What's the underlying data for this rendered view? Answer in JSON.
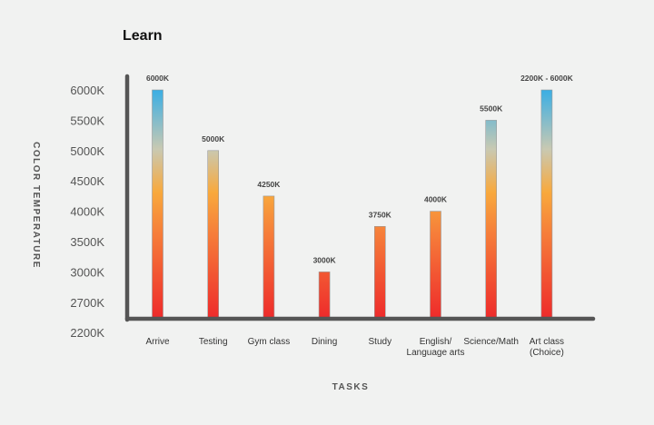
{
  "chart_data": {
    "type": "bar",
    "title": "Learn",
    "xlabel": "TASKS",
    "ylabel": "COLOR TEMPERATURE",
    "y_tick_labels": [
      "6000K",
      "5500K",
      "5000K",
      "4500K",
      "4000K",
      "3500K",
      "3000K",
      "2700K",
      "2200K"
    ],
    "categories": [
      "Arrive",
      "Testing",
      "Gym class",
      "Dining",
      "Study",
      "English/ Language arts",
      "Science/Math",
      "Art class (Choice)"
    ],
    "values": [
      6000,
      5000,
      4250,
      3000,
      3750,
      4000,
      5500,
      6000
    ],
    "value_labels": [
      "6000K",
      "5000K",
      "4250K",
      "3000K",
      "3750K",
      "4000K",
      "5500K",
      "2200K - 6000K"
    ],
    "grid": false,
    "legend": "none",
    "colors": {
      "bar_bottom": "#ee2b2b",
      "bar_low": "#f6803a",
      "bar_mid": "#f8a93c",
      "bar_neutral": "#c9c9b2",
      "bar_top": "#3aaee4",
      "axis": "#555555"
    }
  }
}
